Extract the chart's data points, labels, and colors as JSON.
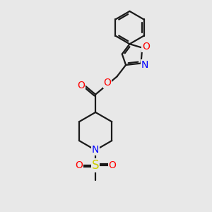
{
  "bg_color": "#e8e8e8",
  "bond_color": "#1a1a1a",
  "O_color": "#ff0000",
  "N_color": "#0000ff",
  "S_color": "#cccc00",
  "bond_width": 1.6,
  "font_size": 10,
  "figsize": [
    3.0,
    3.0
  ],
  "dpi": 100,
  "xlim": [
    0,
    10
  ],
  "ylim": [
    0,
    10
  ]
}
